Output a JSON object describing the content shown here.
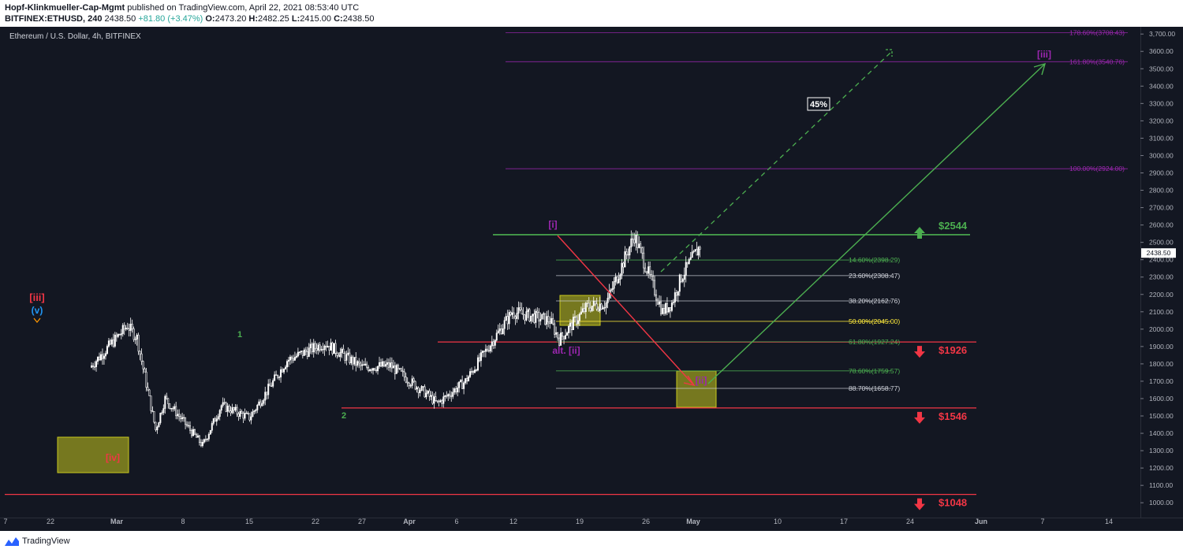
{
  "header": {
    "publisher": "Hopf-Klinkmueller-Cap-Mgmt",
    "published_text": " published on TradingView.com, April 22, 2021 08:53:40 UTC",
    "symbol": "BITFINEX:ETHUSD, 240",
    "last": " 2438.50 ",
    "change": "+81.80 (+3.47%)",
    "o_label": "O:",
    "o_value": "2473.20",
    "h_label": "H:",
    "h_value": "2482.25",
    "l_label": "L:",
    "l_value": "2415.00",
    "c_label": "C:",
    "c_value": "2438.50"
  },
  "footer": {
    "brand": "TradingView",
    "logo_icon": "tradingview-logo-icon"
  },
  "colors": {
    "background": "#131722",
    "candle": "#ffffff",
    "green": "#4caf50",
    "red": "#f23645",
    "purple": "#9c27b0",
    "yellow_box": "#c8c81e",
    "fib_green": "#4caf50",
    "fib_white": "#d1d4dc",
    "fib_yellow": "#ffeb3b"
  },
  "chart_data": {
    "type": "candlestick",
    "title": "Ethereum / U.S. Dollar, 4h, BITFINEX",
    "ylim": [
      900,
      3750
    ],
    "y_ticks": [
      "3,700.00",
      "3600.00",
      "3500.00",
      "3400.00",
      "3300.00",
      "3200.00",
      "3100.00",
      "3000.00",
      "2900.00",
      "2800.00",
      "2700.00",
      "2600.00",
      "2500.00",
      "2400.00",
      "2300.00",
      "2200.00",
      "2100.00",
      "2000.00",
      "1900.00",
      "1800.00",
      "1700.00",
      "1600.00",
      "1500.00",
      "1400.00",
      "1300.00",
      "1200.00",
      "1100.00",
      "1000.00"
    ],
    "x_ticks": [
      "7",
      "22",
      "Mar",
      "8",
      "15",
      "22",
      "27",
      "Apr",
      "6",
      "12",
      "19",
      "26",
      "May",
      "10",
      "17",
      "24",
      "Jun",
      "7",
      "14"
    ],
    "last_price": "2438.50",
    "price_path": [
      {
        "date": "2021-02-16",
        "price": 1780
      },
      {
        "date": "2021-02-20",
        "price": 2020
      },
      {
        "date": "2021-02-21",
        "price": 1950
      },
      {
        "date": "2021-02-23",
        "price": 1420
      },
      {
        "date": "2021-02-24",
        "price": 1600
      },
      {
        "date": "2021-02-28",
        "price": 1330
      },
      {
        "date": "2021-03-02",
        "price": 1560
      },
      {
        "date": "2021-03-05",
        "price": 1490
      },
      {
        "date": "2021-03-09",
        "price": 1820
      },
      {
        "date": "2021-03-13",
        "price": 1920
      },
      {
        "date": "2021-03-17",
        "price": 1780
      },
      {
        "date": "2021-03-20",
        "price": 1790
      },
      {
        "date": "2021-03-24",
        "price": 1620
      },
      {
        "date": "2021-03-25",
        "price": 1570
      },
      {
        "date": "2021-03-28",
        "price": 1700
      },
      {
        "date": "2021-04-02",
        "price": 2100
      },
      {
        "date": "2021-04-06",
        "price": 2050
      },
      {
        "date": "2021-04-07",
        "price": 1940
      },
      {
        "date": "2021-04-10",
        "price": 2130
      },
      {
        "date": "2021-04-12",
        "price": 2150
      },
      {
        "date": "2021-04-15",
        "price": 2540
      },
      {
        "date": "2021-04-18",
        "price": 2100
      },
      {
        "date": "2021-04-19",
        "price": 2150
      },
      {
        "date": "2021-04-20",
        "price": 2300
      },
      {
        "date": "2021-04-22",
        "price": 2480
      }
    ],
    "horizontal_levels": [
      {
        "price": 2544,
        "label": "$2544",
        "color": "green",
        "arrow": "up"
      },
      {
        "price": 1926,
        "label": "$1926",
        "color": "red",
        "arrow": "down"
      },
      {
        "price": 1546,
        "label": "$1546",
        "color": "red",
        "arrow": "down"
      },
      {
        "price": 1048,
        "label": "$1048",
        "color": "red",
        "arrow": "down"
      }
    ],
    "fib_levels": [
      {
        "label": "178.60%(3708.43)",
        "price": 3708.43,
        "color": "purple"
      },
      {
        "label": "161.80%(3540.76)",
        "price": 3540.76,
        "color": "purple"
      },
      {
        "label": "100.00%(2924.00)",
        "price": 2924.0,
        "color": "purple"
      },
      {
        "label": "14.60%(2398.29)",
        "price": 2398.29,
        "color": "green"
      },
      {
        "label": "23.60%(2308.47)",
        "price": 2308.47,
        "color": "white"
      },
      {
        "label": "38.20%(2162.76)",
        "price": 2162.76,
        "color": "white"
      },
      {
        "label": "50.00%(2045.00)",
        "price": 2045.0,
        "color": "yellow"
      },
      {
        "label": "61.80%(1927.24)",
        "price": 1927.24,
        "color": "green"
      },
      {
        "label": "78.60%(1759.57)",
        "price": 1759.57,
        "color": "green"
      },
      {
        "label": "88.70%(1658.77)",
        "price": 1658.77,
        "color": "white"
      }
    ],
    "wave_labels": [
      {
        "text": "[iii]",
        "color": "red"
      },
      {
        "text": "(v)",
        "color": "blue"
      },
      {
        "text": "[iv]",
        "color": "red"
      },
      {
        "text": "1",
        "color": "green"
      },
      {
        "text": "2",
        "color": "green"
      },
      {
        "text": "[i]",
        "color": "purple"
      },
      {
        "text": "alt. [ii]",
        "color": "purple"
      },
      {
        "text": "[ii]",
        "color": "purple"
      },
      {
        "text": "[iii]",
        "color": "purple"
      }
    ],
    "annotations": [
      {
        "text": "45%"
      }
    ]
  }
}
